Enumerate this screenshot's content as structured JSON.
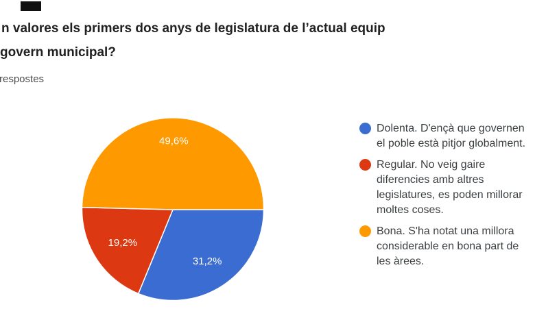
{
  "page": {
    "background": "#ffffff"
  },
  "artifact": {
    "description": "black rectangle",
    "color": "#111111"
  },
  "header": {
    "title_lines": [
      "n valores els primers dos anys de legislatura de l’actual equip",
      "govern municipal?"
    ],
    "responses_label": "respostes"
  },
  "chart_data": {
    "type": "pie",
    "title": "n valores els primers dos anys de legislatura de l’actual equip govern municipal?",
    "names": [
      "Dolenta",
      "Regular",
      "Bona"
    ],
    "values": [
      31.2,
      19.2,
      49.6
    ],
    "display_labels": [
      "31,2%",
      "19,2%",
      "49,6%"
    ],
    "colors": [
      "#3b6cd1",
      "#dc3912",
      "#ff9900"
    ],
    "start_angle_deg_from_east_clockwise": 0,
    "label_radius_factors": [
      0.68,
      0.66,
      0.76
    ],
    "grid": false,
    "legend_position": "right",
    "legend_items": [
      {
        "name": "Dolenta",
        "color": "#3b6cd1",
        "lines": [
          "Dolenta. D'ençà que governen",
          "el poble està pitjor globalment."
        ]
      },
      {
        "name": "Regular",
        "color": "#dc3912",
        "lines": [
          "Regular. No veig gaire",
          "diferencies amb altres",
          "legislatures, es poden millorar",
          "moltes coses."
        ]
      },
      {
        "name": "Bona",
        "color": "#ff9900",
        "lines": [
          "Bona. S'ha notat una millora",
          "considerable en bona part de",
          "les àrees."
        ]
      }
    ]
  }
}
